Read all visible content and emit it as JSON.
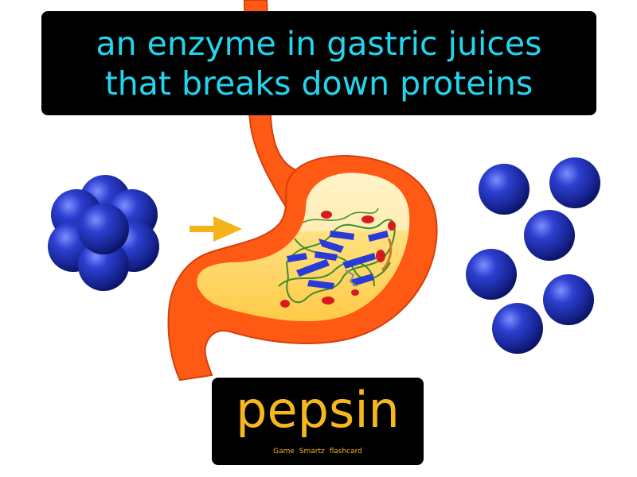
{
  "definition": {
    "line1": "an enzyme in gastric juices",
    "line2": "that breaks down proteins"
  },
  "term": "pepsin",
  "credit": "Game Smartz flashcard",
  "colors": {
    "definition_text": "#23d6f0",
    "term_text": "#f5b71c",
    "label_background": "#000000",
    "stomach_outer": "#ff5a14",
    "stomach_inner": "#ffe9a6",
    "gastric_juice": "#ffcb3a",
    "protein_sphere": "#1c2fb8",
    "arrow": "#f5b21a"
  },
  "icons": {
    "stomach": "stomach-icon",
    "protein": "protein-cluster-icon",
    "amino_acids": "amino-acid-sphere-icon",
    "arrow": "arrow-right-icon",
    "enzyme": "enzyme-ribbon-icon"
  }
}
